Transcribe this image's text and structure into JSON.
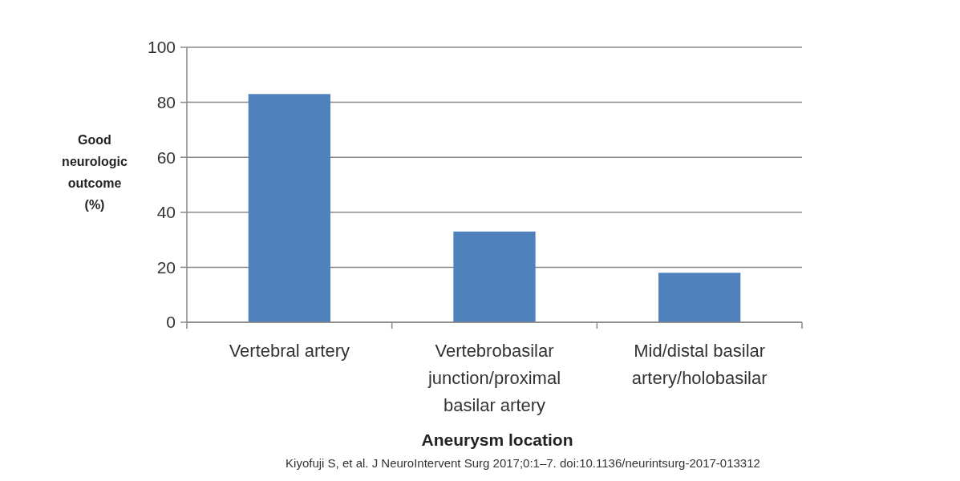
{
  "chart_data": {
    "type": "bar",
    "xlabel": "Aneurysm location",
    "ylabel": "Good neurologic outcome (%)",
    "categories": [
      "Vertebral artery",
      "Vertebrobasilar junction/proximal basilar artery",
      "Mid/distal basilar artery/holobasilar"
    ],
    "values": [
      83,
      33,
      18
    ],
    "color": "#4f81bd",
    "ylim": [
      0,
      100
    ],
    "yticks": [
      0,
      20,
      40,
      60,
      80,
      100
    ],
    "grid": "y",
    "annotations": [
      "Kiyofuji S, et al. J NeuroIntervent Surg 2017;0:1–7. doi:10.1136/neurintsurg-2017-013312"
    ]
  }
}
